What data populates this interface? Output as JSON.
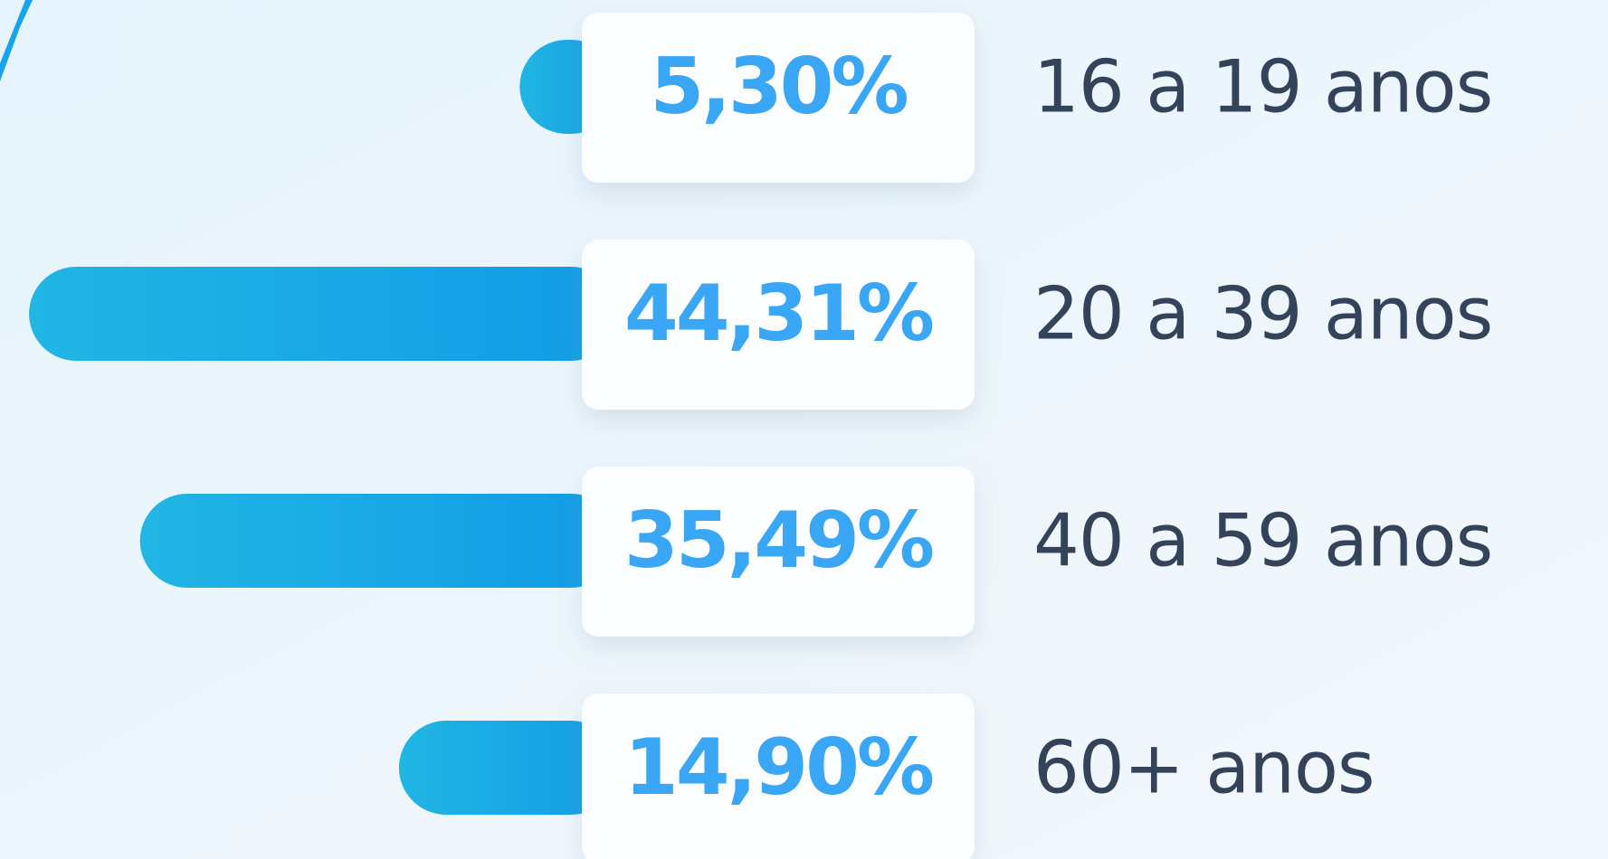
{
  "chart_data": {
    "type": "bar",
    "orientation": "horizontal",
    "categories": [
      "16 a 19 anos",
      "20 a 39 anos",
      "40 a 59 anos",
      "60+ anos"
    ],
    "values": [
      5.3,
      44.31,
      35.49,
      14.9
    ],
    "value_labels": [
      "5,30%",
      "44,31%",
      "35,49%",
      "14,90%"
    ],
    "color": "#139ee6"
  }
}
